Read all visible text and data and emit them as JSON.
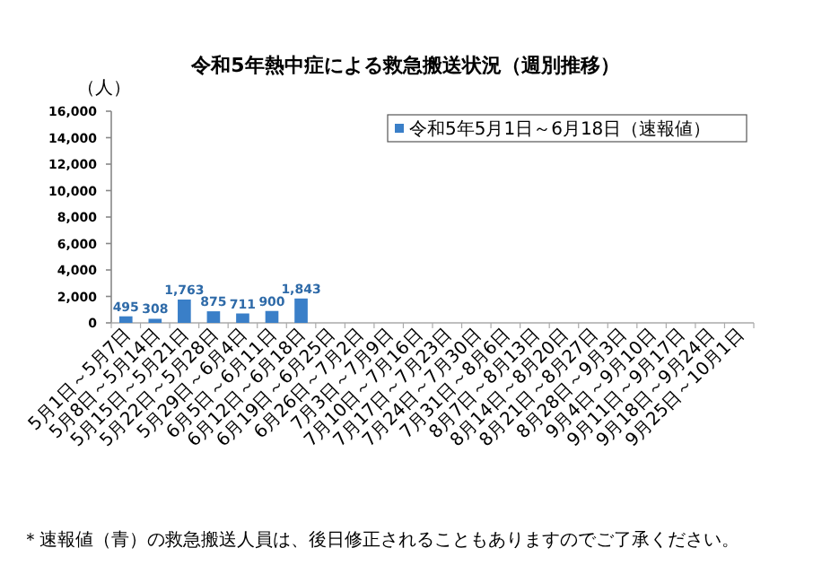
{
  "chart_data": {
    "type": "bar",
    "title": "令和5年熱中症による救急搬送状況（週別推移）",
    "ylabel": "（人）",
    "categories": [
      "5月1日～5月7日",
      "5月8日～5月14日",
      "5月15日～5月21日",
      "5月22日～5月28日",
      "5月29日～6月4日",
      "6月5日～6月11日",
      "6月12日～6月18日",
      "6月19日～6月25日",
      "6月26日～7月2日",
      "7月3日～7月9日",
      "7月10日～7月16日",
      "7月17日～7月23日",
      "7月24日～7月30日",
      "7月31日～8月6日",
      "8月7日～8月13日",
      "8月14日～8月20日",
      "8月21日～8月27日",
      "8月28日～9月3日",
      "9月4日～9月10日",
      "9月11日～9月17日",
      "9月18日～9月24日",
      "9月25日～10月1日"
    ],
    "series": [
      {
        "name": "令和5年5月1日～6月18日（速報値）",
        "color": "#3a7fc8",
        "values": [
          495,
          308,
          1763,
          875,
          711,
          900,
          1843,
          null,
          null,
          null,
          null,
          null,
          null,
          null,
          null,
          null,
          null,
          null,
          null,
          null,
          null,
          null
        ],
        "value_labels": [
          "495",
          "308",
          "1,763",
          "875",
          "711",
          "900",
          "1,843",
          null,
          null,
          null,
          null,
          null,
          null,
          null,
          null,
          null,
          null,
          null,
          null,
          null,
          null,
          null
        ]
      }
    ],
    "ylim": [
      0,
      16000
    ],
    "yticks": [
      {
        "value": 0,
        "label": "0"
      },
      {
        "value": 2000,
        "label": "2,000"
      },
      {
        "value": 4000,
        "label": "4,000"
      },
      {
        "value": 6000,
        "label": "6,000"
      },
      {
        "value": 8000,
        "label": "8,000"
      },
      {
        "value": 10000,
        "label": "10,000"
      },
      {
        "value": 12000,
        "label": "12,000"
      },
      {
        "value": 14000,
        "label": "14,000"
      },
      {
        "value": 16000,
        "label": "16,000"
      }
    ],
    "legend": "top right",
    "grid": false,
    "annotations": [
      "＊速報値（青）の救急搬送人員は、後日修正されることもありますのでご了承ください。"
    ]
  }
}
